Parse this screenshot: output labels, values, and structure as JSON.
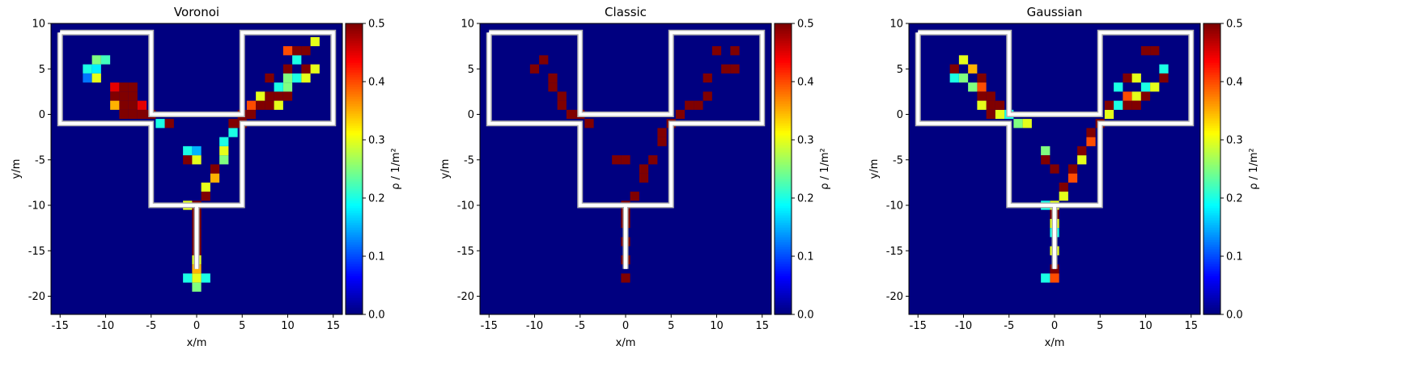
{
  "chart_data": [
    {
      "type": "heatmap",
      "title": "Voronoi",
      "xlabel": "x/m",
      "ylabel": "y/m",
      "xlim": [
        -16,
        16
      ],
      "ylim": [
        -22,
        10
      ],
      "xticks": [
        -15,
        -10,
        -5,
        0,
        5,
        10,
        15
      ],
      "yticks": [
        -20,
        -15,
        -10,
        -5,
        0,
        5,
        10
      ],
      "colorbar": {
        "label": "ρ / 1/m²",
        "min": 0.0,
        "max": 0.5,
        "ticks": [
          "0.0",
          "0.1",
          "0.2",
          "0.3",
          "0.4",
          "0.5"
        ],
        "colormap": "jet"
      },
      "background_value": 0.0,
      "cells": [
        [
          -12,
          5,
          0.2
        ],
        [
          -11,
          5,
          0.18
        ],
        [
          -11,
          6,
          0.25
        ],
        [
          -12,
          4,
          0.12
        ],
        [
          -10,
          6,
          0.22
        ],
        [
          -11,
          4,
          0.3
        ],
        [
          -9,
          3,
          0.45
        ],
        [
          -9,
          2,
          0.5
        ],
        [
          -8,
          3,
          0.5
        ],
        [
          -8,
          2,
          0.5
        ],
        [
          -8,
          1,
          0.5
        ],
        [
          -7,
          1,
          0.5
        ],
        [
          -7,
          0,
          0.5
        ],
        [
          -6,
          0,
          0.5
        ],
        [
          -6,
          1,
          0.45
        ],
        [
          -8,
          0,
          0.5
        ],
        [
          -7,
          3,
          0.5
        ],
        [
          -7,
          2,
          0.5
        ],
        [
          -9,
          1,
          0.35
        ],
        [
          -5,
          0,
          0.5
        ],
        [
          -4,
          -1,
          0.2
        ],
        [
          -3,
          -1,
          0.5
        ],
        [
          -1,
          -5,
          0.5
        ],
        [
          -1,
          -4,
          0.2
        ],
        [
          0,
          -5,
          0.3
        ],
        [
          0,
          -4,
          0.15
        ],
        [
          1,
          -9,
          0.5
        ],
        [
          1,
          -8,
          0.3
        ],
        [
          2,
          -7,
          0.35
        ],
        [
          2,
          -6,
          0.5
        ],
        [
          3,
          -5,
          0.25
        ],
        [
          3,
          -4,
          0.3
        ],
        [
          3,
          -3,
          0.2
        ],
        [
          4,
          -2,
          0.2
        ],
        [
          4,
          -1,
          0.5
        ],
        [
          5,
          -1,
          0.5
        ],
        [
          5,
          0,
          0.5
        ],
        [
          6,
          0,
          0.5
        ],
        [
          6,
          1,
          0.4
        ],
        [
          7,
          1,
          0.5
        ],
        [
          7,
          2,
          0.3
        ],
        [
          8,
          1,
          0.5
        ],
        [
          8,
          2,
          0.5
        ],
        [
          9,
          2,
          0.5
        ],
        [
          9,
          1,
          0.3
        ],
        [
          10,
          2,
          0.5
        ],
        [
          10,
          3,
          0.25
        ],
        [
          8,
          4,
          0.5
        ],
        [
          9,
          3,
          0.2
        ],
        [
          10,
          5,
          0.5
        ],
        [
          11,
          6,
          0.2
        ],
        [
          12,
          7,
          0.5
        ],
        [
          11,
          7,
          0.5
        ],
        [
          12,
          5,
          0.5
        ],
        [
          13,
          5,
          0.3
        ],
        [
          10,
          4,
          0.25
        ],
        [
          11,
          4,
          0.2
        ],
        [
          12,
          4,
          0.3
        ],
        [
          10,
          7,
          0.4
        ],
        [
          13,
          8,
          0.3
        ],
        [
          0,
          -10,
          0.5
        ],
        [
          -1,
          -10,
          0.3
        ],
        [
          0,
          -11,
          0.5
        ],
        [
          0,
          -12,
          0.5
        ],
        [
          0,
          -13,
          0.5
        ],
        [
          0,
          -14,
          0.5
        ],
        [
          0,
          -15,
          0.5
        ],
        [
          0,
          -16,
          0.3
        ],
        [
          0,
          -17,
          0.35
        ],
        [
          0,
          -18,
          0.3
        ],
        [
          -1,
          -18,
          0.2
        ],
        [
          1,
          -18,
          0.2
        ],
        [
          0,
          -19,
          0.25
        ]
      ],
      "walls": [
        [
          [
            -15,
            9
          ],
          [
            -5,
            9
          ],
          [
            -5,
            0
          ],
          [
            5,
            0
          ],
          [
            5,
            9
          ],
          [
            15,
            9
          ],
          [
            15,
            -1
          ],
          [
            5,
            -1
          ],
          [
            5,
            -10
          ],
          [
            0,
            -10
          ],
          [
            0,
            -17
          ],
          [
            0,
            -10
          ],
          [
            -5,
            -10
          ],
          [
            -5,
            -1
          ],
          [
            -15,
            -1
          ],
          [
            -15,
            9
          ]
        ]
      ]
    },
    {
      "type": "heatmap",
      "title": "Classic",
      "xlabel": "x/m",
      "ylabel": "y/m",
      "xlim": [
        -16,
        16
      ],
      "ylim": [
        -22,
        10
      ],
      "xticks": [
        -15,
        -10,
        -5,
        0,
        5,
        10,
        15
      ],
      "yticks": [
        -20,
        -15,
        -10,
        -5,
        0,
        5,
        10
      ],
      "colorbar": {
        "label": "ρ / 1/m²",
        "min": 0.0,
        "max": 0.5,
        "ticks": [
          "0.0",
          "0.1",
          "0.2",
          "0.3",
          "0.4",
          "0.5"
        ],
        "colormap": "jet"
      },
      "background_value": 0.0,
      "cells": [
        [
          -10,
          5,
          0.5
        ],
        [
          -9,
          6,
          0.5
        ],
        [
          -8,
          4,
          0.5
        ],
        [
          -8,
          3,
          0.5
        ],
        [
          -7,
          2,
          0.5
        ],
        [
          -7,
          1,
          0.5
        ],
        [
          -6,
          0,
          0.5
        ],
        [
          -5,
          0,
          0.5
        ],
        [
          -4,
          -1,
          0.5
        ],
        [
          -1,
          -5,
          0.5
        ],
        [
          0,
          -5,
          0.5
        ],
        [
          1,
          -9,
          0.5
        ],
        [
          2,
          -7,
          0.5
        ],
        [
          2,
          -6,
          0.5
        ],
        [
          3,
          -5,
          0.5
        ],
        [
          4,
          -3,
          0.5
        ],
        [
          4,
          -2,
          0.5
        ],
        [
          5,
          -1,
          0.5
        ],
        [
          6,
          0,
          0.5
        ],
        [
          7,
          1,
          0.5
        ],
        [
          8,
          1,
          0.5
        ],
        [
          9,
          2,
          0.5
        ],
        [
          9,
          4,
          0.5
        ],
        [
          10,
          7,
          0.5
        ],
        [
          12,
          7,
          0.5
        ],
        [
          12,
          5,
          0.5
        ],
        [
          11,
          5,
          0.5
        ],
        [
          0,
          -10,
          0.5
        ],
        [
          0,
          -11,
          0.5
        ],
        [
          0,
          -12,
          0.5
        ],
        [
          0,
          -14,
          0.5
        ],
        [
          0,
          -16,
          0.5
        ],
        [
          0,
          -18,
          0.5
        ]
      ],
      "walls": [
        [
          [
            -15,
            9
          ],
          [
            -5,
            9
          ],
          [
            -5,
            0
          ],
          [
            5,
            0
          ],
          [
            5,
            9
          ],
          [
            15,
            9
          ],
          [
            15,
            -1
          ],
          [
            5,
            -1
          ],
          [
            5,
            -10
          ],
          [
            0,
            -10
          ],
          [
            0,
            -17
          ],
          [
            0,
            -10
          ],
          [
            -5,
            -10
          ],
          [
            -5,
            -1
          ],
          [
            -15,
            -1
          ],
          [
            -15,
            9
          ]
        ]
      ]
    },
    {
      "type": "heatmap",
      "title": "Gaussian",
      "xlabel": "x/m",
      "ylabel": "y/m",
      "xlim": [
        -16,
        16
      ],
      "ylim": [
        -22,
        10
      ],
      "xticks": [
        -15,
        -10,
        -5,
        0,
        5,
        10,
        15
      ],
      "yticks": [
        -20,
        -15,
        -10,
        -5,
        0,
        5,
        10
      ],
      "colorbar": {
        "label": "ρ / 1/m²",
        "min": 0.0,
        "max": 0.5,
        "ticks": [
          "0.0",
          "0.1",
          "0.2",
          "0.3",
          "0.4",
          "0.5"
        ],
        "colormap": "jet"
      },
      "background_value": 0.0,
      "cells": [
        [
          -11,
          5,
          0.5
        ],
        [
          -10,
          6,
          0.3
        ],
        [
          -10,
          4,
          0.25
        ],
        [
          -11,
          4,
          0.2
        ],
        [
          -9,
          5,
          0.35
        ],
        [
          -8,
          4,
          0.5
        ],
        [
          -8,
          3,
          0.4
        ],
        [
          -9,
          3,
          0.25
        ],
        [
          -8,
          2,
          0.5
        ],
        [
          -7,
          2,
          0.5
        ],
        [
          -7,
          1,
          0.5
        ],
        [
          -8,
          1,
          0.3
        ],
        [
          -7,
          0,
          0.5
        ],
        [
          -6,
          0,
          0.3
        ],
        [
          -6,
          1,
          0.5
        ],
        [
          -5,
          0,
          0.2
        ],
        [
          -4,
          -1,
          0.25
        ],
        [
          -3,
          -1,
          0.3
        ],
        [
          -1,
          -4,
          0.25
        ],
        [
          -1,
          -5,
          0.5
        ],
        [
          0,
          -6,
          0.5
        ],
        [
          1,
          -8,
          0.5
        ],
        [
          1,
          -9,
          0.3
        ],
        [
          2,
          -7,
          0.4
        ],
        [
          2,
          -6,
          0.5
        ],
        [
          3,
          -5,
          0.3
        ],
        [
          3,
          -4,
          0.5
        ],
        [
          4,
          -3,
          0.4
        ],
        [
          4,
          -2,
          0.5
        ],
        [
          5,
          -1,
          0.5
        ],
        [
          6,
          0,
          0.3
        ],
        [
          6,
          1,
          0.5
        ],
        [
          7,
          1,
          0.2
        ],
        [
          8,
          1,
          0.5
        ],
        [
          8,
          2,
          0.4
        ],
        [
          9,
          2,
          0.3
        ],
        [
          9,
          1,
          0.5
        ],
        [
          10,
          2,
          0.5
        ],
        [
          10,
          3,
          0.2
        ],
        [
          8,
          4,
          0.5
        ],
        [
          11,
          3,
          0.3
        ],
        [
          10,
          7,
          0.5
        ],
        [
          11,
          7,
          0.5
        ],
        [
          12,
          5,
          0.2
        ],
        [
          12,
          4,
          0.5
        ],
        [
          7,
          3,
          0.2
        ],
        [
          9,
          4,
          0.3
        ],
        [
          0,
          -10,
          0.3
        ],
        [
          -1,
          -10,
          0.2
        ],
        [
          0,
          -11,
          0.5
        ],
        [
          0,
          -12,
          0.3
        ],
        [
          0,
          -13,
          0.2
        ],
        [
          0,
          -15,
          0.3
        ],
        [
          0,
          -17,
          0.5
        ],
        [
          0,
          -18,
          0.4
        ],
        [
          -1,
          -18,
          0.2
        ]
      ],
      "walls": [
        [
          [
            -15,
            9
          ],
          [
            -5,
            9
          ],
          [
            -5,
            0
          ],
          [
            5,
            0
          ],
          [
            5,
            9
          ],
          [
            15,
            9
          ],
          [
            15,
            -1
          ],
          [
            5,
            -1
          ],
          [
            5,
            -10
          ],
          [
            0,
            -10
          ],
          [
            0,
            -17
          ],
          [
            0,
            -10
          ],
          [
            -5,
            -10
          ],
          [
            -5,
            -1
          ],
          [
            -15,
            -1
          ],
          [
            -15,
            9
          ]
        ]
      ]
    }
  ]
}
